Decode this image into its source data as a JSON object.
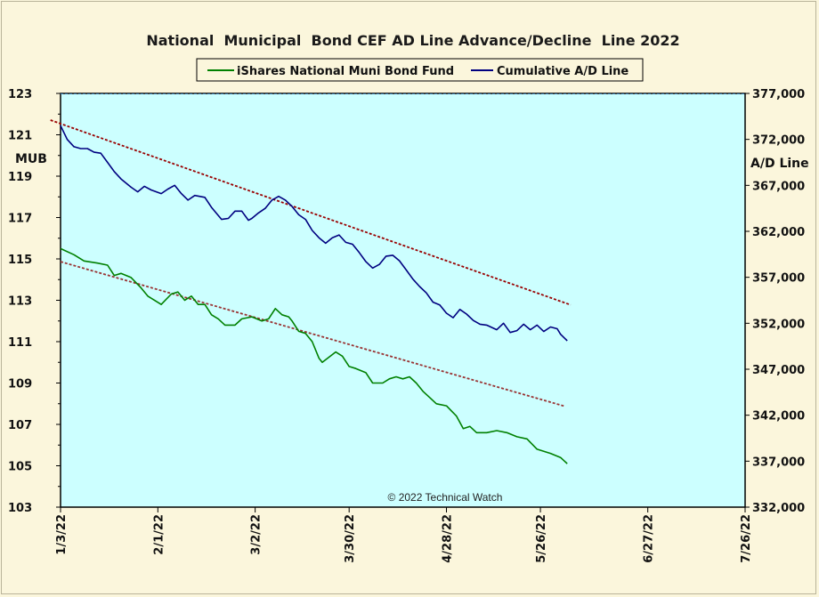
{
  "chart_data": {
    "type": "line",
    "title": "National  Municipal  Bond CEF AD Line Advance/Decline  Line 2022",
    "annotation": "© 2022 Technical Watch",
    "legend_placement": "top-center",
    "grid": false,
    "left_axis": {
      "label": "MUB",
      "range": [
        103,
        123
      ],
      "ticks": [
        "103",
        "105",
        "107",
        "109",
        "111",
        "113",
        "115",
        "117",
        "119",
        "121",
        "123"
      ]
    },
    "right_axis": {
      "label": "A/D Line",
      "range": [
        332000,
        377000
      ],
      "ticks": [
        "332,000",
        "337,000",
        "342,000",
        "347,000",
        "352,000",
        "357,000",
        "362,000",
        "367,000",
        "372,000",
        "377,000"
      ]
    },
    "x_axis": {
      "range": [
        "2022-01-03",
        "2022-07-26"
      ],
      "ticks": [
        "1/3/22",
        "2/1/22",
        "3/2/22",
        "3/30/22",
        "4/28/22",
        "5/26/22",
        "6/27/22",
        "7/26/22"
      ]
    },
    "series": [
      {
        "name": "iShares National Muni Bond Fund",
        "axis": "left",
        "color": "#008000",
        "points": [
          [
            "2022-01-03",
            115.5
          ],
          [
            "2022-01-07",
            115.2
          ],
          [
            "2022-01-10",
            114.9
          ],
          [
            "2022-01-14",
            114.8
          ],
          [
            "2022-01-17",
            114.7
          ],
          [
            "2022-01-19",
            114.2
          ],
          [
            "2022-01-21",
            114.3
          ],
          [
            "2022-01-24",
            114.1
          ],
          [
            "2022-01-27",
            113.6
          ],
          [
            "2022-01-29",
            113.2
          ],
          [
            "2022-02-01",
            112.9
          ],
          [
            "2022-02-02",
            112.8
          ],
          [
            "2022-02-05",
            113.3
          ],
          [
            "2022-02-07",
            113.4
          ],
          [
            "2022-02-09",
            113.0
          ],
          [
            "2022-02-11",
            113.2
          ],
          [
            "2022-02-13",
            112.8
          ],
          [
            "2022-02-15",
            112.8
          ],
          [
            "2022-02-17",
            112.3
          ],
          [
            "2022-02-19",
            112.1
          ],
          [
            "2022-02-21",
            111.8
          ],
          [
            "2022-02-24",
            111.8
          ],
          [
            "2022-02-26",
            112.1
          ],
          [
            "2022-03-01",
            112.2
          ],
          [
            "2022-03-04",
            112.0
          ],
          [
            "2022-03-06",
            112.1
          ],
          [
            "2022-03-08",
            112.6
          ],
          [
            "2022-03-10",
            112.3
          ],
          [
            "2022-03-12",
            112.2
          ],
          [
            "2022-03-13",
            112.0
          ],
          [
            "2022-03-15",
            111.5
          ],
          [
            "2022-03-17",
            111.4
          ],
          [
            "2022-03-19",
            111.0
          ],
          [
            "2022-03-21",
            110.2
          ],
          [
            "2022-03-22",
            110.0
          ],
          [
            "2022-03-26",
            110.5
          ],
          [
            "2022-03-28",
            110.3
          ],
          [
            "2022-03-30",
            109.8
          ],
          [
            "2022-04-01",
            109.7
          ],
          [
            "2022-04-04",
            109.5
          ],
          [
            "2022-04-06",
            109.0
          ],
          [
            "2022-04-09",
            109.0
          ],
          [
            "2022-04-11",
            109.2
          ],
          [
            "2022-04-13",
            109.3
          ],
          [
            "2022-04-15",
            109.2
          ],
          [
            "2022-04-17",
            109.3
          ],
          [
            "2022-04-19",
            109.0
          ],
          [
            "2022-04-21",
            108.6
          ],
          [
            "2022-04-23",
            108.3
          ],
          [
            "2022-04-25",
            108.0
          ],
          [
            "2022-04-28",
            107.9
          ],
          [
            "2022-05-01",
            107.4
          ],
          [
            "2022-05-03",
            106.8
          ],
          [
            "2022-05-05",
            106.9
          ],
          [
            "2022-05-07",
            106.6
          ],
          [
            "2022-05-10",
            106.6
          ],
          [
            "2022-05-13",
            106.7
          ],
          [
            "2022-05-16",
            106.6
          ],
          [
            "2022-05-19",
            106.4
          ],
          [
            "2022-05-22",
            106.3
          ],
          [
            "2022-05-25",
            105.8
          ],
          [
            "2022-05-29",
            105.6
          ],
          [
            "2022-06-01",
            105.4
          ],
          [
            "2022-06-03",
            105.1
          ]
        ]
      },
      {
        "name": "Cumulative A/D Line",
        "axis": "right",
        "color": "#000080",
        "points": [
          [
            "2022-01-03",
            373500
          ],
          [
            "2022-01-05",
            372000
          ],
          [
            "2022-01-07",
            371200
          ],
          [
            "2022-01-09",
            371000
          ],
          [
            "2022-01-11",
            371000
          ],
          [
            "2022-01-13",
            370600
          ],
          [
            "2022-01-15",
            370500
          ],
          [
            "2022-01-17",
            369500
          ],
          [
            "2022-01-19",
            368500
          ],
          [
            "2022-01-21",
            367700
          ],
          [
            "2022-01-24",
            366800
          ],
          [
            "2022-01-26",
            366300
          ],
          [
            "2022-01-28",
            366900
          ],
          [
            "2022-01-30",
            366500
          ],
          [
            "2022-02-02",
            366100
          ],
          [
            "2022-02-04",
            366600
          ],
          [
            "2022-02-06",
            367000
          ],
          [
            "2022-02-08",
            366100
          ],
          [
            "2022-02-10",
            365400
          ],
          [
            "2022-02-12",
            365900
          ],
          [
            "2022-02-15",
            365700
          ],
          [
            "2022-02-17",
            364600
          ],
          [
            "2022-02-20",
            363300
          ],
          [
            "2022-02-22",
            363400
          ],
          [
            "2022-02-24",
            364200
          ],
          [
            "2022-02-26",
            364200
          ],
          [
            "2022-02-28",
            363200
          ],
          [
            "2022-03-01",
            363400
          ],
          [
            "2022-03-03",
            364000
          ],
          [
            "2022-03-05",
            364500
          ],
          [
            "2022-03-07",
            365400
          ],
          [
            "2022-03-09",
            365800
          ],
          [
            "2022-03-11",
            365400
          ],
          [
            "2022-03-13",
            364700
          ],
          [
            "2022-03-15",
            363800
          ],
          [
            "2022-03-17",
            363300
          ],
          [
            "2022-03-19",
            362100
          ],
          [
            "2022-03-21",
            361300
          ],
          [
            "2022-03-23",
            360700
          ],
          [
            "2022-03-25",
            361300
          ],
          [
            "2022-03-27",
            361600
          ],
          [
            "2022-03-29",
            360800
          ],
          [
            "2022-03-31",
            360600
          ],
          [
            "2022-04-02",
            359700
          ],
          [
            "2022-04-04",
            358700
          ],
          [
            "2022-04-06",
            358000
          ],
          [
            "2022-04-08",
            358400
          ],
          [
            "2022-04-10",
            359300
          ],
          [
            "2022-04-12",
            359400
          ],
          [
            "2022-04-14",
            358800
          ],
          [
            "2022-04-16",
            357800
          ],
          [
            "2022-04-18",
            356800
          ],
          [
            "2022-04-20",
            356000
          ],
          [
            "2022-04-22",
            355300
          ],
          [
            "2022-04-24",
            354300
          ],
          [
            "2022-04-26",
            354000
          ],
          [
            "2022-04-28",
            353100
          ],
          [
            "2022-04-30",
            352600
          ],
          [
            "2022-05-02",
            353500
          ],
          [
            "2022-05-04",
            353000
          ],
          [
            "2022-05-06",
            352300
          ],
          [
            "2022-05-08",
            351900
          ],
          [
            "2022-05-10",
            351800
          ],
          [
            "2022-05-13",
            351300
          ],
          [
            "2022-05-15",
            352000
          ],
          [
            "2022-05-17",
            351000
          ],
          [
            "2022-05-19",
            351200
          ],
          [
            "2022-05-21",
            351900
          ],
          [
            "2022-05-23",
            351300
          ],
          [
            "2022-05-25",
            351800
          ],
          [
            "2022-05-27",
            351100
          ],
          [
            "2022-05-29",
            351600
          ],
          [
            "2022-05-31",
            351400
          ],
          [
            "2022-06-01",
            350800
          ],
          [
            "2022-06-03",
            350100
          ]
        ]
      }
    ],
    "trendlines": [
      {
        "axis": "right",
        "color": "#990000",
        "points": [
          [
            "2021-12-31",
            374100
          ],
          [
            "2022-06-04",
            354000
          ]
        ]
      },
      {
        "axis": "right",
        "color": "#993333",
        "points": [
          [
            "2022-01-03",
            358700
          ],
          [
            "2022-06-02",
            343000
          ]
        ]
      }
    ]
  }
}
